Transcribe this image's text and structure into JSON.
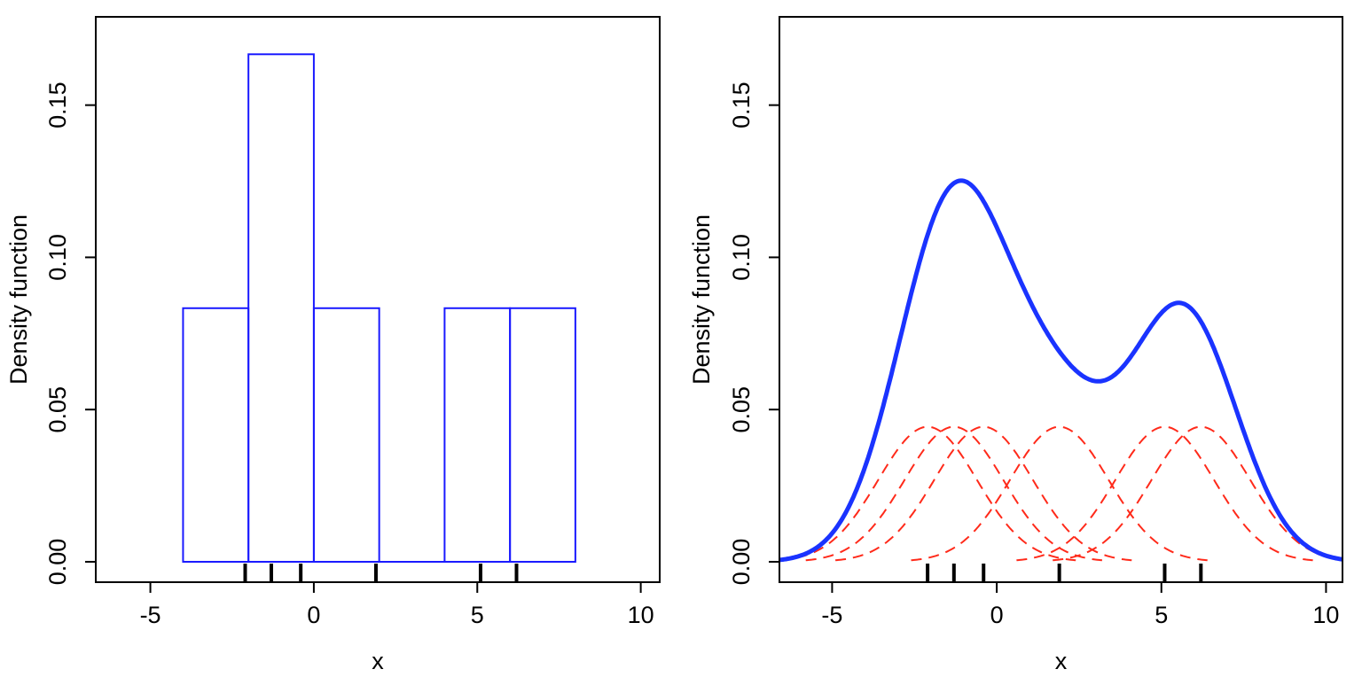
{
  "chart_data": [
    {
      "type": "bar",
      "subtype": "histogram",
      "xlabel": "x",
      "ylabel": "Density function",
      "xlim": [
        -6.67,
        10.58
      ],
      "ylim": [
        -0.0067,
        0.179
      ],
      "x_ticks": [
        "-5",
        "0",
        "5",
        "10"
      ],
      "x_tick_values": [
        -5,
        0,
        5,
        10
      ],
      "y_ticks": [
        "0.00",
        "0.05",
        "0.10",
        "0.15"
      ],
      "y_tick_values": [
        0,
        0.05,
        0.1,
        0.15
      ],
      "bins": [
        {
          "from": -4,
          "to": -2,
          "density": 0.0833
        },
        {
          "from": -2,
          "to": 0,
          "density": 0.1667
        },
        {
          "from": 0,
          "to": 2,
          "density": 0.0833
        },
        {
          "from": 2,
          "to": 4,
          "density": 0
        },
        {
          "from": 4,
          "to": 6,
          "density": 0.0833
        },
        {
          "from": 6,
          "to": 8,
          "density": 0.0833
        }
      ],
      "rug": [
        -2.1,
        -1.3,
        -0.4,
        1.9,
        5.1,
        6.2
      ],
      "bar_color": "#1a1aff",
      "grid": false
    },
    {
      "type": "line",
      "subtype": "kernel density estimate",
      "xlabel": "x",
      "ylabel": "Density function",
      "xlim": [
        -6.6,
        10.5
      ],
      "ylim": [
        -0.0067,
        0.179
      ],
      "x_ticks": [
        "-5",
        "0",
        "5",
        "10"
      ],
      "x_tick_values": [
        -5,
        0,
        5,
        10
      ],
      "y_ticks": [
        "0.00",
        "0.05",
        "0.10",
        "0.15"
      ],
      "y_tick_values": [
        0,
        0.05,
        0.1,
        0.15
      ],
      "data_points": [
        -2.1,
        -1.3,
        -0.4,
        1.9,
        5.1,
        6.2
      ],
      "kernel": "gaussian",
      "bandwidth_sd": 1.5,
      "kde_color": "#1a33ff",
      "kernel_color": "#ff2a1a",
      "kernel_style": "dashed",
      "grid": false
    }
  ]
}
